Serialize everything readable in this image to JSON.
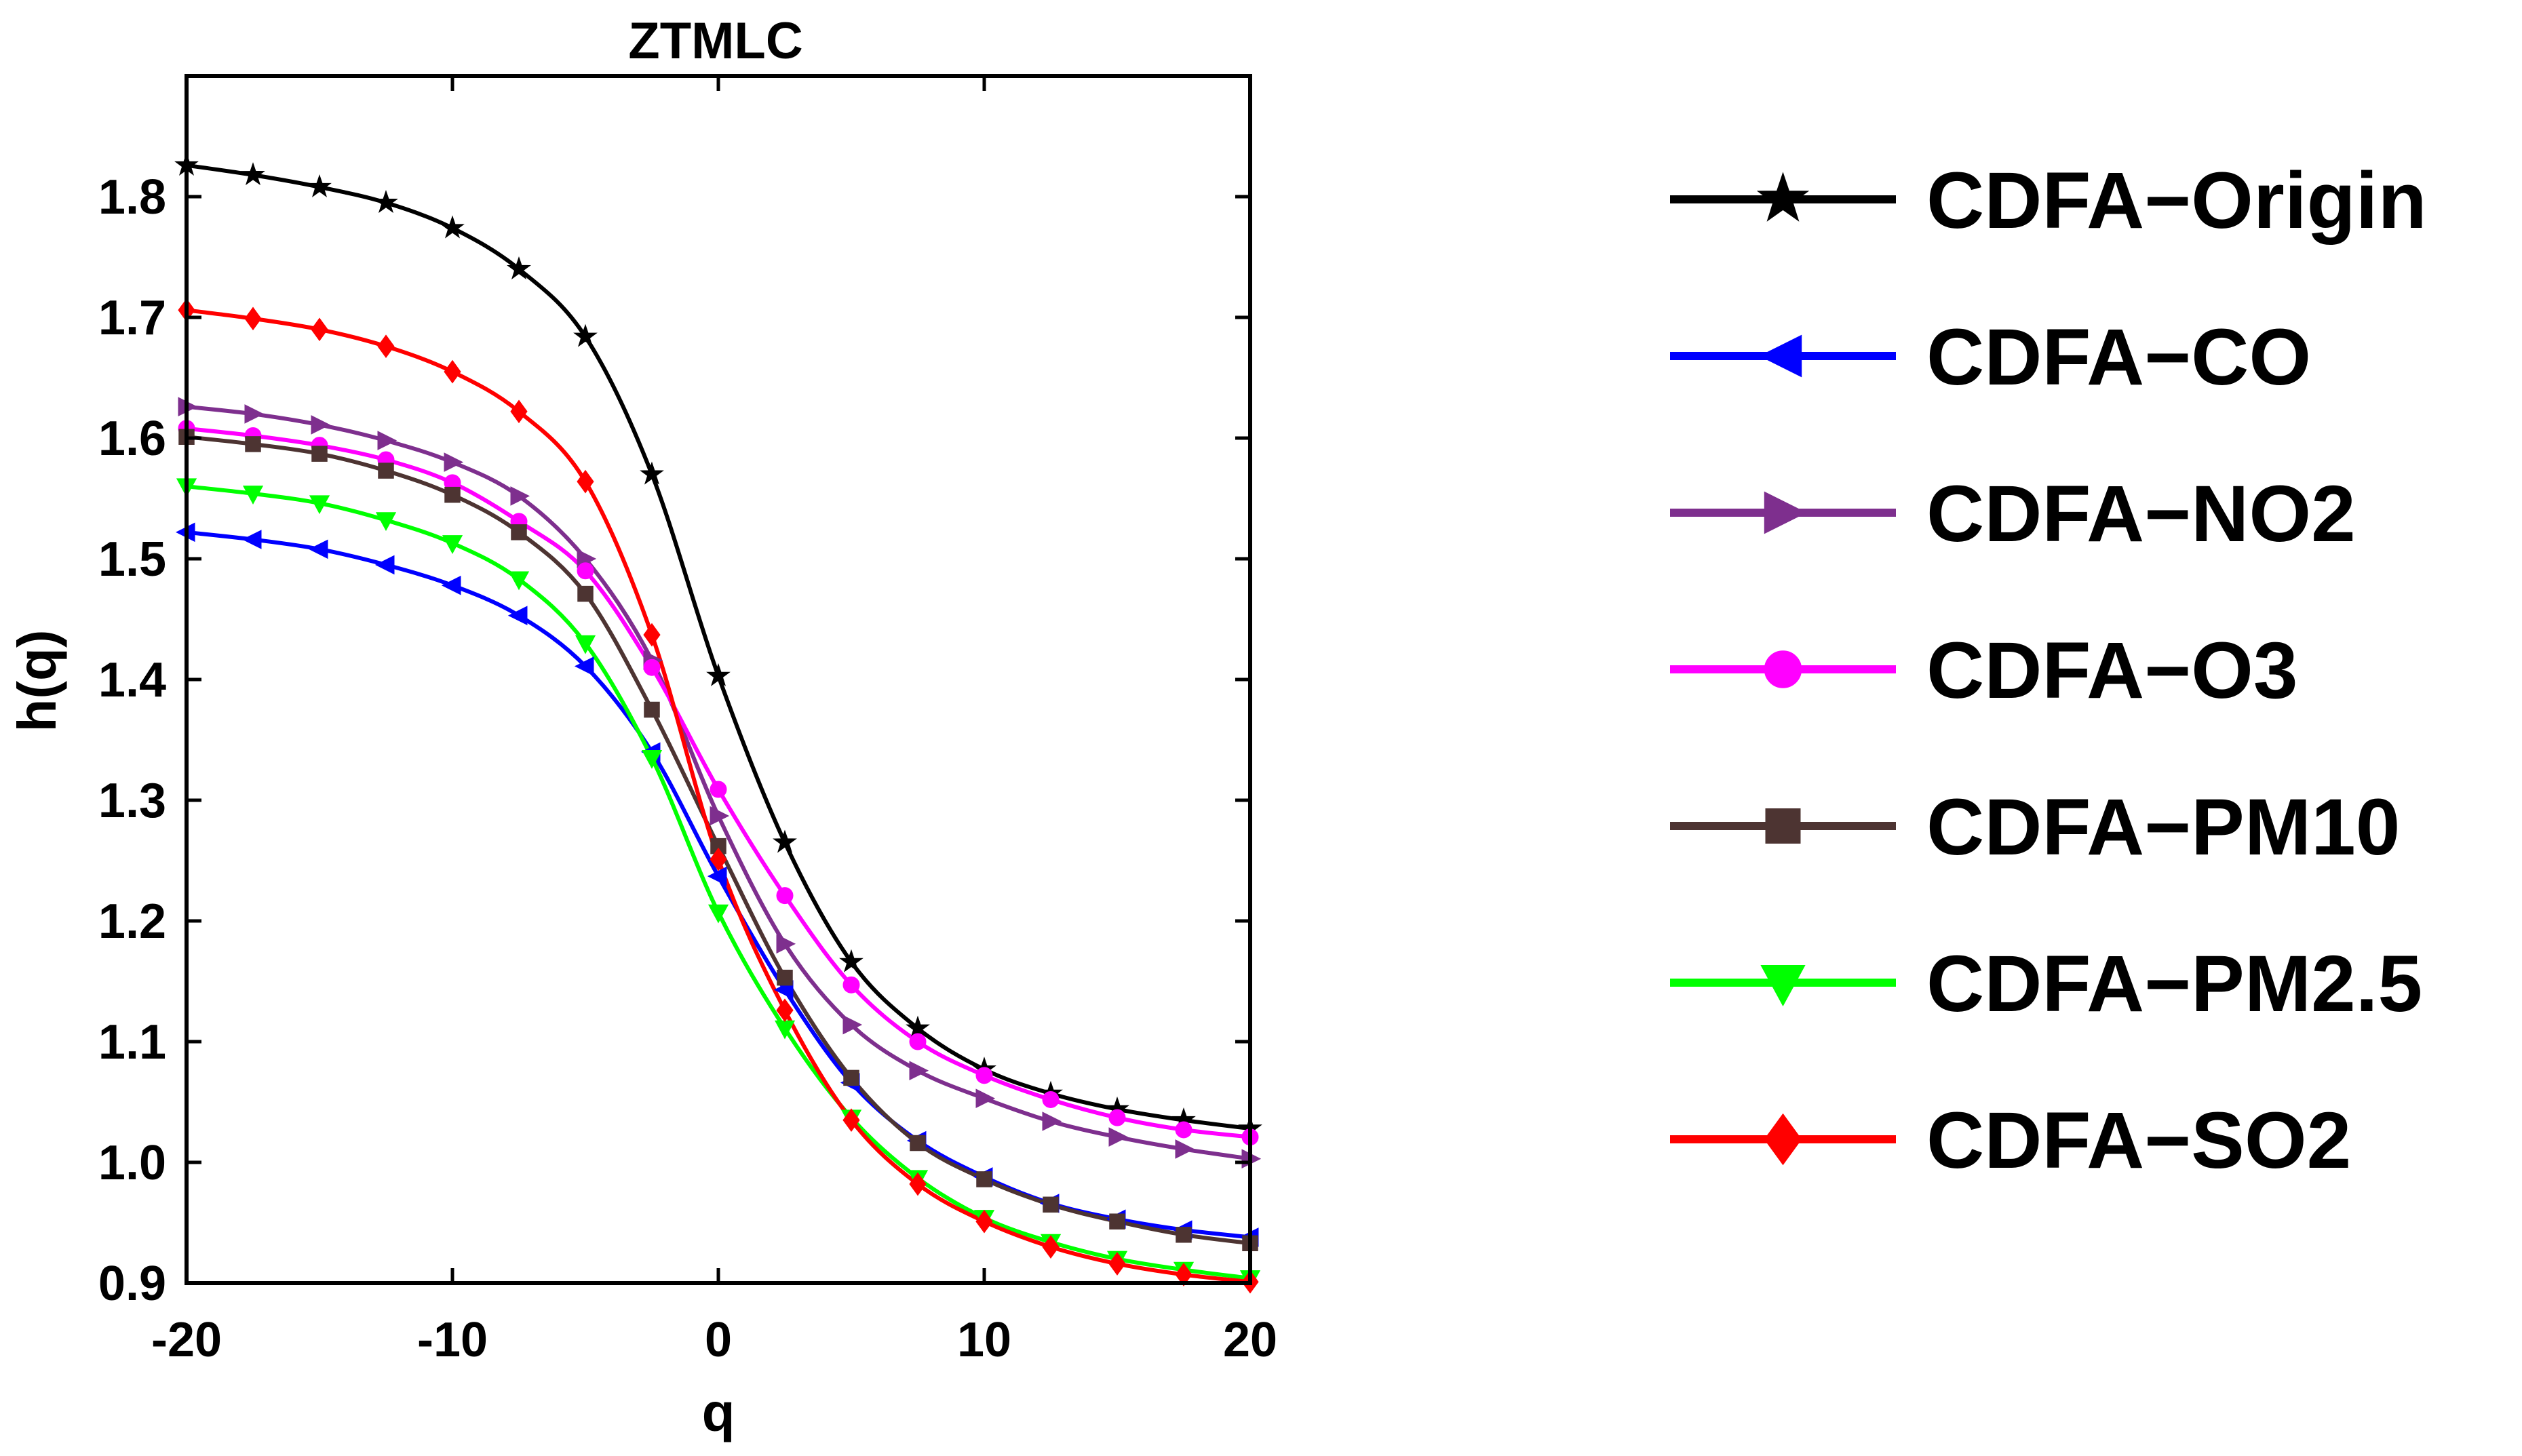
{
  "chart_data": {
    "type": "line",
    "title": "ZTMLC",
    "xlabel": "q",
    "ylabel": "h(q)",
    "xlim": [
      -20,
      20
    ],
    "ylim": [
      0.9,
      1.9
    ],
    "xticks": [
      -20,
      -10,
      0,
      10,
      20
    ],
    "xtick_labels": [
      "-20",
      "-10",
      "0",
      "10",
      "20"
    ],
    "yticks": [
      0.9,
      1.0,
      1.1,
      1.2,
      1.3,
      1.4,
      1.5,
      1.6,
      1.7,
      1.8
    ],
    "ytick_labels": [
      "0.9",
      "1.0",
      "1.1",
      "1.2",
      "1.3",
      "1.4",
      "1.5",
      "1.6",
      "1.7",
      "1.8"
    ],
    "grid": false,
    "legend_position": "right",
    "x": [
      -20,
      -17.5,
      -15,
      -12.5,
      -10,
      -7.5,
      -5,
      -2.5,
      0,
      2.5,
      5,
      7.5,
      10,
      12.5,
      15,
      17.5,
      20
    ],
    "series": [
      {
        "name": "CDFA−Origin",
        "color": "#000000",
        "marker": "star",
        "values": [
          1.826,
          1.818,
          1.808,
          1.795,
          1.774,
          1.74,
          1.684,
          1.57,
          1.403,
          1.265,
          1.166,
          1.111,
          1.077,
          1.057,
          1.044,
          1.035,
          1.028
        ]
      },
      {
        "name": "CDFA−CO",
        "color": "#0000ff",
        "marker": "triangle-left",
        "values": [
          1.522,
          1.516,
          1.508,
          1.495,
          1.478,
          1.453,
          1.411,
          1.34,
          1.237,
          1.143,
          1.066,
          1.018,
          0.988,
          0.966,
          0.953,
          0.944,
          0.938
        ]
      },
      {
        "name": "CDFA−NO2",
        "color": "#7e2f8e",
        "marker": "triangle-right",
        "values": [
          1.626,
          1.62,
          1.611,
          1.598,
          1.58,
          1.552,
          1.5,
          1.416,
          1.287,
          1.181,
          1.114,
          1.076,
          1.053,
          1.034,
          1.021,
          1.011,
          1.003
        ]
      },
      {
        "name": "CDFA−O3",
        "color": "#ff00ff",
        "marker": "circle",
        "values": [
          1.608,
          1.602,
          1.594,
          1.582,
          1.563,
          1.531,
          1.49,
          1.41,
          1.309,
          1.221,
          1.147,
          1.1,
          1.072,
          1.052,
          1.037,
          1.027,
          1.021
        ]
      },
      {
        "name": "CDFA−PM10",
        "color": "#4d3432",
        "marker": "square",
        "values": [
          1.601,
          1.595,
          1.587,
          1.573,
          1.553,
          1.522,
          1.471,
          1.375,
          1.262,
          1.153,
          1.07,
          1.016,
          0.986,
          0.965,
          0.951,
          0.94,
          0.933
        ]
      },
      {
        "name": "CDFA−PM2.5",
        "color": "#00ff00",
        "marker": "triangle-down",
        "values": [
          1.56,
          1.554,
          1.546,
          1.532,
          1.513,
          1.483,
          1.43,
          1.335,
          1.207,
          1.111,
          1.037,
          0.987,
          0.954,
          0.934,
          0.92,
          0.911,
          0.904
        ]
      },
      {
        "name": "CDFA−SO2",
        "color": "#ff0000",
        "marker": "diamond",
        "values": [
          1.706,
          1.699,
          1.69,
          1.676,
          1.655,
          1.622,
          1.564,
          1.437,
          1.251,
          1.126,
          1.035,
          0.982,
          0.951,
          0.93,
          0.916,
          0.907,
          0.901
        ]
      }
    ]
  }
}
